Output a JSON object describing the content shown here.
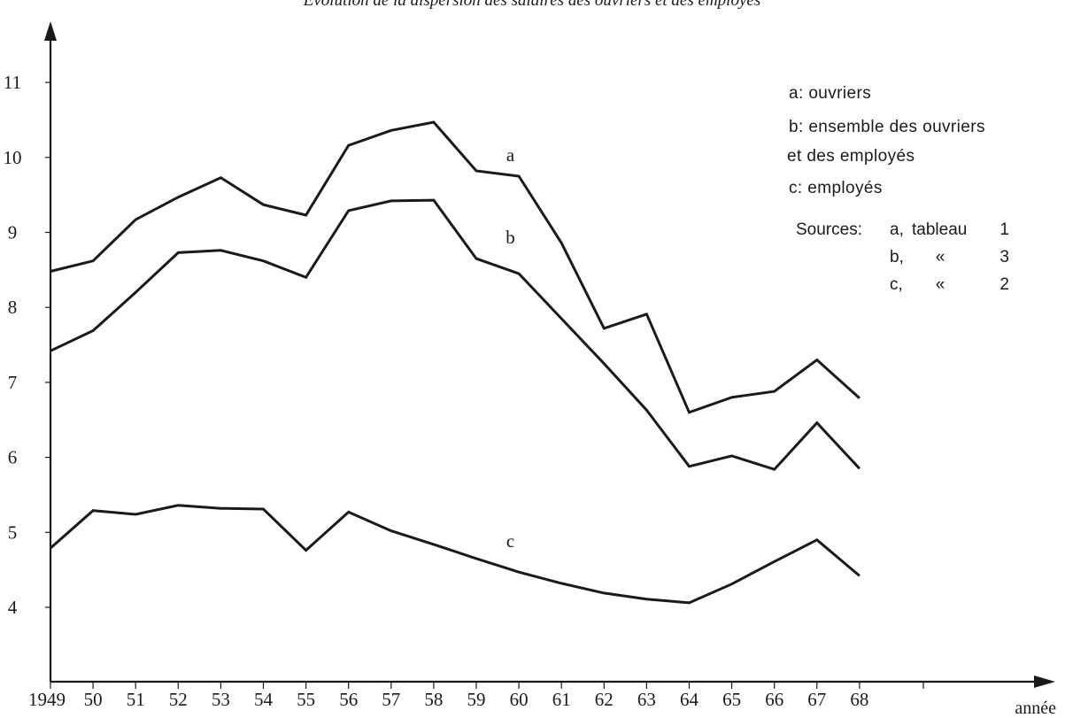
{
  "chart_data": {
    "type": "line",
    "title": "Évolution de la dispersion des salaires des ouvriers et des employés",
    "xlabel": "année",
    "ylabel": "",
    "x": [
      1949,
      1950,
      1951,
      1952,
      1953,
      1954,
      1955,
      1956,
      1957,
      1958,
      1959,
      1960,
      1961,
      1962,
      1963,
      1964,
      1965,
      1966,
      1967,
      1968
    ],
    "x_tick_labels": [
      "1949",
      "50",
      "51",
      "52",
      "53",
      "54",
      "55",
      "56",
      "57",
      "58",
      "59",
      "60",
      "61",
      "62",
      "63",
      "64",
      "65",
      "66",
      "67",
      "68"
    ],
    "y_ticks": [
      4,
      5,
      6,
      7,
      8,
      9,
      10,
      11
    ],
    "y_tick_labels": [
      "4",
      "5",
      "6",
      "7",
      "8",
      "9",
      "10",
      "11"
    ],
    "xlim": [
      1949,
      1970.2
    ],
    "ylim": [
      3.1,
      12.0
    ],
    "grid": false,
    "series": [
      {
        "name": "a",
        "color": "#1a1a1a",
        "values": [
          8.48,
          8.62,
          9.17,
          9.47,
          9.73,
          9.37,
          9.23,
          10.16,
          10.36,
          10.47,
          9.82,
          9.75,
          8.86,
          7.72,
          7.91,
          6.6,
          6.8,
          6.88,
          7.3,
          6.79
        ]
      },
      {
        "name": "b",
        "color": "#1a1a1a",
        "values": [
          7.42,
          7.69,
          8.2,
          8.73,
          8.76,
          8.62,
          8.4,
          9.29,
          9.42,
          9.43,
          8.65,
          8.45,
          7.85,
          7.25,
          6.63,
          5.88,
          6.02,
          5.84,
          6.46,
          5.85
        ]
      },
      {
        "name": "c",
        "color": "#1a1a1a",
        "values": [
          4.79,
          5.29,
          5.24,
          5.36,
          5.32,
          5.31,
          4.76,
          5.27,
          5.02,
          4.84,
          4.65,
          4.47,
          4.32,
          4.19,
          4.11,
          4.06,
          4.31,
          4.61,
          4.9,
          4.42
        ]
      }
    ],
    "annotations": [
      {
        "text": "a",
        "x": 1959.8,
        "y": 9.95
      },
      {
        "text": "b",
        "x": 1959.8,
        "y": 8.85
      },
      {
        "text": "c",
        "x": 1959.8,
        "y": 4.8
      }
    ],
    "legend": {
      "placement": "top-right",
      "lines": [
        "a: ouvriers",
        "b: ensemble des ouvriers",
        "et des employés",
        "c: employés"
      ],
      "sources_label": "Sources:",
      "sources": [
        [
          "a,",
          "tableau",
          "1"
        ],
        [
          "b,",
          "«",
          "3"
        ],
        [
          "c,",
          "«",
          "2"
        ]
      ]
    }
  }
}
